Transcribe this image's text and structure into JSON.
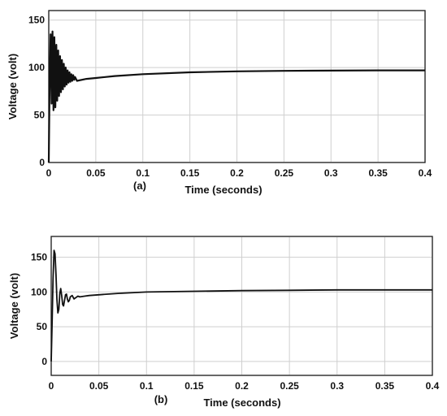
{
  "chart_data": [
    {
      "type": "line",
      "panel_label": "(a)",
      "xlabel": "Time (seconds)",
      "ylabel": "Voltage (volt)",
      "xlim": [
        0,
        0.4
      ],
      "ylim": [
        0,
        160
      ],
      "xticks": [
        "0",
        "0.05",
        "0.1",
        "0.15",
        "0.2",
        "0.25",
        "0.3",
        "0.35",
        "0.4"
      ],
      "yticks": [
        "0",
        "50",
        "100",
        "150"
      ],
      "grid": true,
      "series": [
        {
          "x": [
            0,
            0.001,
            0.002,
            0.003,
            0.004,
            0.005,
            0.006,
            0.007,
            0.008,
            0.009,
            0.01,
            0.011,
            0.012,
            0.013,
            0.014,
            0.015,
            0.016,
            0.017,
            0.018,
            0.019,
            0.02,
            0.021,
            0.022,
            0.023,
            0.024,
            0.025,
            0.026,
            0.027,
            0.028,
            0.03,
            0.04,
            0.05,
            0.07,
            0.1,
            0.15,
            0.2,
            0.25,
            0.3,
            0.35,
            0.4
          ],
          "y": [
            0,
            95,
            135,
            62,
            138,
            55,
            132,
            58,
            124,
            65,
            118,
            70,
            112,
            74,
            108,
            77,
            104,
            80,
            100,
            82,
            97,
            84,
            95,
            85,
            93,
            86,
            92,
            87,
            90,
            86,
            88,
            89,
            91,
            93,
            95,
            96,
            96.5,
            96.8,
            97,
            97
          ]
        }
      ]
    },
    {
      "type": "line",
      "panel_label": "(b)",
      "xlabel": "Time (seconds)",
      "ylabel": "Voltage (volt)",
      "xlim": [
        0,
        0.4
      ],
      "ylim": [
        -20,
        180
      ],
      "xticks": [
        "0",
        "0.05",
        "0.1",
        "0.15",
        "0.2",
        "0.25",
        "0.3",
        "0.35",
        "0.4"
      ],
      "yticks": [
        "0",
        "50",
        "100",
        "150"
      ],
      "grid": true,
      "series": [
        {
          "x": [
            0,
            0.001,
            0.002,
            0.003,
            0.004,
            0.005,
            0.006,
            0.007,
            0.008,
            0.009,
            0.01,
            0.011,
            0.012,
            0.013,
            0.014,
            0.015,
            0.016,
            0.017,
            0.018,
            0.019,
            0.02,
            0.022,
            0.024,
            0.026,
            0.028,
            0.03,
            0.035,
            0.04,
            0.05,
            0.07,
            0.1,
            0.15,
            0.2,
            0.25,
            0.3,
            0.35,
            0.4
          ],
          "y": [
            0,
            60,
            120,
            160,
            155,
            125,
            90,
            70,
            75,
            98,
            105,
            95,
            82,
            80,
            88,
            96,
            97,
            90,
            86,
            88,
            93,
            95,
            90,
            92,
            94,
            93,
            94,
            95,
            96,
            98,
            100,
            101,
            102,
            102.5,
            103,
            103,
            103
          ]
        }
      ]
    }
  ]
}
